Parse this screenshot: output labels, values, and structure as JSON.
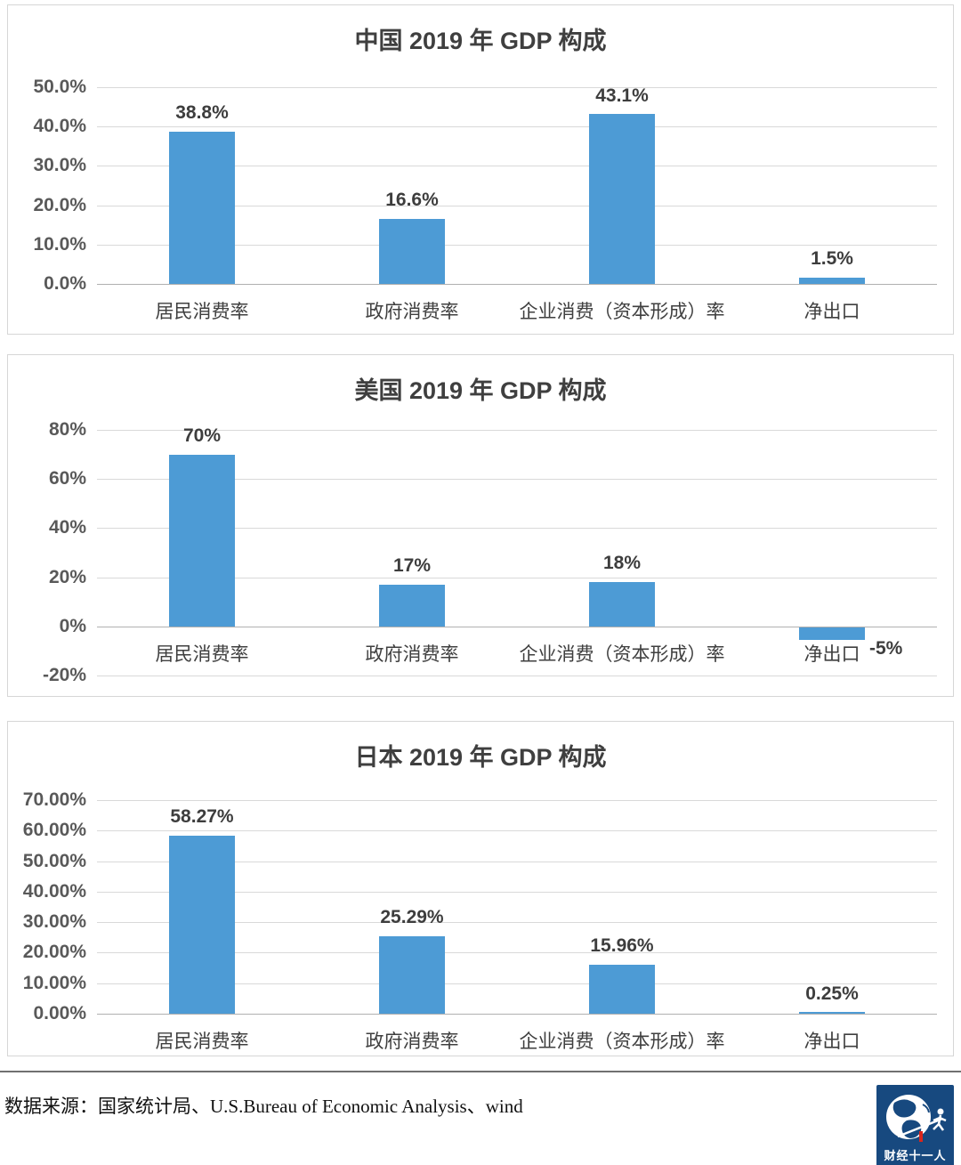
{
  "colors": {
    "bar_blue": "#4D9BD5",
    "gridline": "#D9D9D9",
    "zero_line": "#B0B0B0",
    "title_text": "#3F3F3F",
    "tick_text": "#595959",
    "logo_bg": "#17497F",
    "logo_accent_red": "#D9261C"
  },
  "chart_data": [
    {
      "type": "bar",
      "title": "中国 2019 年 GDP 构成",
      "categories": [
        "居民消费率",
        "政府消费率",
        "企业消费（资本形成）率",
        "净出口"
      ],
      "values": [
        38.8,
        16.6,
        43.1,
        1.5
      ],
      "value_labels": [
        "38.8%",
        "16.6%",
        "43.1%",
        "1.5%"
      ],
      "label_sides": [
        "top",
        "top",
        "top",
        "top"
      ],
      "ylim": [
        0,
        50
      ],
      "grid": true,
      "legend": "none",
      "yticks": [
        {
          "label": "50.0%",
          "value": 50
        },
        {
          "label": "40.0%",
          "value": 40
        },
        {
          "label": "30.0%",
          "value": 30
        },
        {
          "label": "20.0%",
          "value": 20
        },
        {
          "label": "10.0%",
          "value": 10
        },
        {
          "label": "0.0%",
          "value": 0
        }
      ]
    },
    {
      "type": "bar",
      "title": "美国 2019 年 GDP 构成",
      "categories": [
        "居民消费率",
        "政府消费率",
        "企业消费（资本形成）率",
        "净出口"
      ],
      "values": [
        70,
        17,
        18,
        -5
      ],
      "value_labels": [
        "70%",
        "17%",
        "18%",
        "-5%"
      ],
      "label_sides": [
        "top",
        "top",
        "top",
        "right"
      ],
      "ylim": [
        -20,
        80
      ],
      "grid": true,
      "legend": "none",
      "yticks": [
        {
          "label": "80%",
          "value": 80
        },
        {
          "label": "60%",
          "value": 60
        },
        {
          "label": "40%",
          "value": 40
        },
        {
          "label": "20%",
          "value": 20
        },
        {
          "label": "0%",
          "value": 0
        },
        {
          "label": "-20%",
          "value": -20
        }
      ]
    },
    {
      "type": "bar",
      "title": "日本 2019 年 GDP 构成",
      "categories": [
        "居民消费率",
        "政府消费率",
        "企业消费（资本形成）率",
        "净出口"
      ],
      "values": [
        58.27,
        25.29,
        15.96,
        0.25
      ],
      "value_labels": [
        "58.27%",
        "25.29%",
        "15.96%",
        "0.25%"
      ],
      "label_sides": [
        "top",
        "top",
        "top",
        "top"
      ],
      "ylim": [
        0,
        70
      ],
      "grid": true,
      "legend": "none",
      "yticks": [
        {
          "label": "70.00%",
          "value": 70
        },
        {
          "label": "60.00%",
          "value": 60
        },
        {
          "label": "50.00%",
          "value": 50
        },
        {
          "label": "40.00%",
          "value": 40
        },
        {
          "label": "30.00%",
          "value": 30
        },
        {
          "label": "20.00%",
          "value": 20
        },
        {
          "label": "10.00%",
          "value": 10
        },
        {
          "label": "0.00%",
          "value": 0
        }
      ]
    }
  ],
  "footer": {
    "source_text": "数据来源：国家统计局、U.S.Bureau of Economic Analysis、wind",
    "logo_text": "财经十一人"
  }
}
